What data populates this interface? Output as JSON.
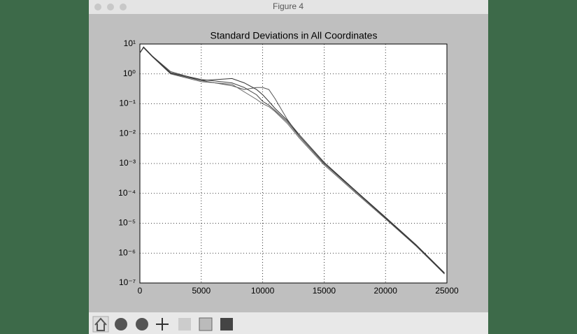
{
  "window": {
    "title": "Figure 4"
  },
  "chart_data": {
    "type": "line",
    "title": "Standard Deviations in All Coordinates",
    "x": [
      0,
      300,
      1000,
      2500,
      5000,
      7500,
      8500,
      9500,
      10000,
      10500,
      11000,
      12000,
      13000,
      15000,
      17500,
      20000,
      22500,
      24800
    ],
    "series": [
      {
        "color": "#555555",
        "values": [
          5,
          8,
          4,
          1.2,
          0.6,
          0.4,
          0.3,
          0.35,
          0.35,
          0.3,
          0.15,
          0.03,
          0.008,
          0.001,
          0.00012,
          1.5e-05,
          1.8e-06,
          2e-07
        ]
      },
      {
        "color": "#444444",
        "values": [
          5,
          8,
          4,
          1.1,
          0.65,
          0.5,
          0.35,
          0.2,
          0.12,
          0.09,
          0.06,
          0.025,
          0.008,
          0.001,
          0.00013,
          1.6e-05,
          1.9e-06,
          2.2e-07
        ]
      },
      {
        "color": "#666666",
        "values": [
          5,
          7.5,
          3.8,
          1.0,
          0.55,
          0.45,
          0.25,
          0.14,
          0.1,
          0.08,
          0.055,
          0.022,
          0.007,
          0.0009,
          0.00011,
          1.4e-05,
          1.7e-06,
          2e-07
        ]
      },
      {
        "color": "#333333",
        "values": [
          5,
          7.8,
          3.9,
          1.05,
          0.6,
          0.7,
          0.5,
          0.3,
          0.2,
          0.12,
          0.07,
          0.028,
          0.009,
          0.0011,
          0.00013,
          1.5e-05,
          1.8e-06,
          2.1e-07
        ]
      }
    ],
    "xlim": [
      0,
      25000
    ],
    "xticks": [
      0,
      5000,
      10000,
      15000,
      20000,
      25000
    ],
    "ylim": [
      1e-07,
      10
    ],
    "log_y": true,
    "grid": true,
    "yticks": [
      {
        "value": 1e-07,
        "label": "10⁻⁷"
      },
      {
        "value": 1e-06,
        "label": "10⁻⁶"
      },
      {
        "value": 1e-05,
        "label": "10⁻⁵"
      },
      {
        "value": 0.0001,
        "label": "10⁻⁴"
      },
      {
        "value": 0.001,
        "label": "10⁻³"
      },
      {
        "value": 0.01,
        "label": "10⁻²"
      },
      {
        "value": 0.1,
        "label": "10⁻¹"
      },
      {
        "value": 1,
        "label": "10⁰"
      },
      {
        "value": 10,
        "label": "10¹"
      }
    ]
  }
}
